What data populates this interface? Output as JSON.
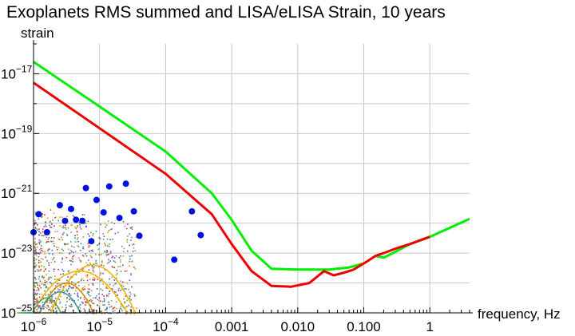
{
  "chart_data": {
    "type": "line",
    "title": "Exoplanets RMS summed and LISA/eLISA Strain, 10 years",
    "xlabel": "frequency, Hz",
    "ylabel": "strain",
    "xscale": "log",
    "yscale": "log",
    "xlim": [
      1e-06,
      4
    ],
    "ylim": [
      1e-25,
      1e-16
    ],
    "grid": true,
    "x_ticks": [
      {
        "label": "10",
        "exp": "−6",
        "value": 1e-06
      },
      {
        "label": "10",
        "exp": "−5",
        "value": 1e-05
      },
      {
        "label": "10",
        "exp": "−4",
        "value": 0.0001
      },
      {
        "label": "0.001",
        "exp": "",
        "value": 0.001
      },
      {
        "label": "0.010",
        "exp": "",
        "value": 0.01
      },
      {
        "label": "0.100",
        "exp": "",
        "value": 0.1
      },
      {
        "label": "1",
        "exp": "",
        "value": 1
      }
    ],
    "y_ticks": [
      {
        "label": "10",
        "exp": "−17",
        "value": 1e-17
      },
      {
        "label": "10",
        "exp": "−19",
        "value": 1e-19
      },
      {
        "label": "10",
        "exp": "−21",
        "value": 1e-21
      },
      {
        "label": "10",
        "exp": "−23",
        "value": 1e-23
      },
      {
        "label": "10",
        "exp": "−25",
        "value": 1e-25
      }
    ],
    "series": [
      {
        "color": "#00ee00",
        "x": [
          1e-06,
          1e-05,
          0.0001,
          0.0005,
          0.001,
          0.002,
          0.004,
          0.01,
          0.03,
          0.06,
          0.1,
          0.15,
          0.2,
          0.3,
          0.5,
          1,
          2,
          4
        ],
        "y": [
          2.5e-17,
          8e-19,
          2.5e-20,
          1e-21,
          1.3e-22,
          1.2e-23,
          3e-24,
          2.8e-24,
          2.8e-24,
          3.3e-24,
          4.5e-24,
          8e-24,
          7e-24,
          1.1e-23,
          2e-23,
          3.5e-23,
          7e-23,
          1.4e-22
        ]
      },
      {
        "color": "#ee0000",
        "x": [
          1e-06,
          1e-05,
          0.0001,
          0.0005,
          0.001,
          0.002,
          0.004,
          0.008,
          0.015,
          0.025,
          0.035,
          0.05,
          0.07,
          0.1,
          0.15,
          0.2,
          0.3,
          0.5,
          1
        ],
        "y": [
          5e-18,
          1.5e-19,
          4.5e-21,
          2e-22,
          2e-23,
          2.5e-24,
          8e-25,
          7.5e-25,
          1e-24,
          2.5e-24,
          1.8e-24,
          2.2e-24,
          2.8e-24,
          4.5e-24,
          8e-24,
          1e-23,
          1.4e-23,
          2e-23,
          3.5e-23
        ]
      }
    ],
    "scatter_blue": {
      "color": "#0010e0",
      "x": [
        1e-06,
        1.2e-06,
        1.6e-06,
        2.5e-06,
        3e-06,
        3.7e-06,
        4.4e-06,
        5.5e-06,
        6.2e-06,
        7.5e-06,
        9e-06,
        1.15e-05,
        1.4e-05,
        2e-05,
        2.5e-05,
        3.3e-05,
        4e-05,
        0.000135,
        0.00025,
        0.00034
      ],
      "y": [
        5e-23,
        2e-22,
        5e-23,
        4e-22,
        1.2e-22,
        3e-22,
        1.3e-22,
        1.2e-22,
        1.5e-21,
        2.5e-23,
        6e-22,
        2.3e-22,
        1.7e-21,
        1.5e-22,
        2.1e-21,
        2.5e-22,
        3.8e-23,
        6e-24,
        2.5e-22,
        4e-23
      ]
    }
  }
}
